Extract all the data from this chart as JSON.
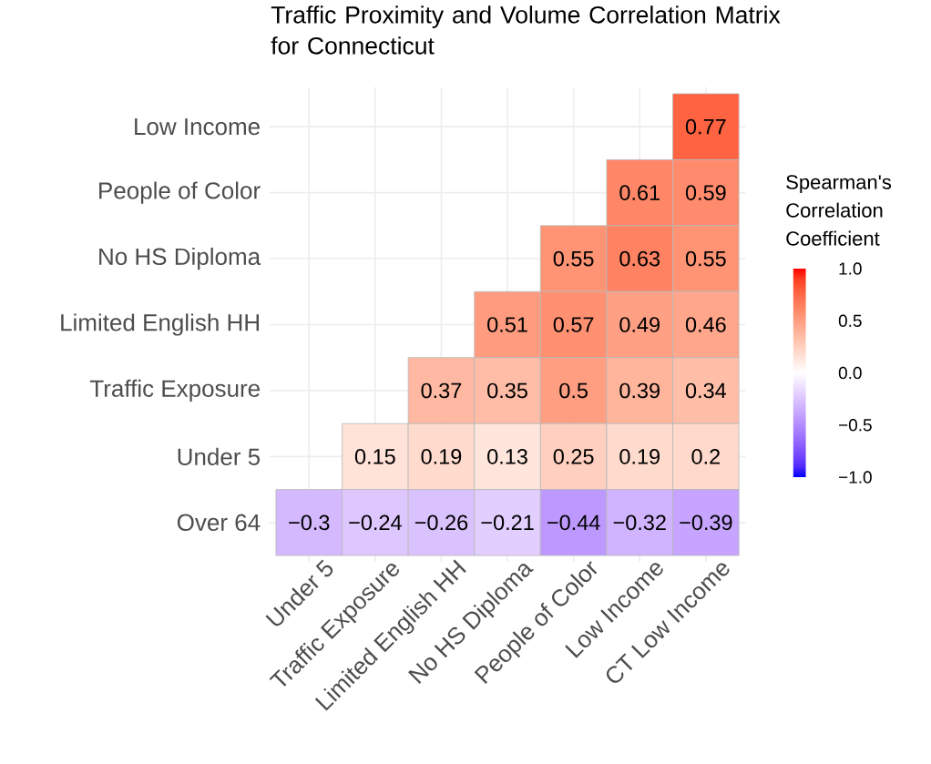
{
  "chart_data": {
    "type": "heatmap",
    "title": "Traffic Proximity and Volume Correlation Matrix for Connecticut",
    "categories": [
      "Under 5",
      "Traffic Exposure",
      "Limited English HH",
      "No HS Diploma",
      "People of Color",
      "Low Income",
      "CT Low Income"
    ],
    "y_categories": [
      "Low Income",
      "People of Color",
      "No HS Diploma",
      "Limited English HH",
      "Traffic Exposure",
      "Under 5",
      "Over 64"
    ],
    "cells": [
      [
        null,
        null,
        null,
        null,
        null,
        null,
        0.77
      ],
      [
        null,
        null,
        null,
        null,
        null,
        0.61,
        0.59
      ],
      [
        null,
        null,
        null,
        null,
        0.55,
        0.63,
        0.55
      ],
      [
        null,
        null,
        null,
        0.51,
        0.57,
        0.49,
        0.46
      ],
      [
        null,
        null,
        0.37,
        0.35,
        0.5,
        0.39,
        0.34
      ],
      [
        null,
        0.15,
        0.19,
        0.13,
        0.25,
        0.19,
        0.2
      ],
      [
        -0.3,
        -0.24,
        -0.26,
        -0.21,
        -0.44,
        -0.32,
        -0.39
      ]
    ],
    "cell_labels": [
      [
        null,
        null,
        null,
        null,
        null,
        null,
        "0.77"
      ],
      [
        null,
        null,
        null,
        null,
        null,
        "0.61",
        "0.59"
      ],
      [
        null,
        null,
        null,
        null,
        "0.55",
        "0.63",
        "0.55"
      ],
      [
        null,
        null,
        null,
        "0.51",
        "0.57",
        "0.49",
        "0.46"
      ],
      [
        null,
        null,
        "0.37",
        "0.35",
        "0.5",
        "0.39",
        "0.34"
      ],
      [
        null,
        "0.15",
        "0.19",
        "0.13",
        "0.25",
        "0.19",
        "0.2"
      ],
      [
        "−0.3",
        "−0.24",
        "−0.26",
        "−0.21",
        "−0.44",
        "−0.32",
        "−0.39"
      ]
    ],
    "clabel": "Spearman's Correlation Coefficient",
    "clim": [
      -1,
      1
    ],
    "cticks": [
      {
        "value": -1,
        "label": "−1.0"
      },
      {
        "value": -0.5,
        "label": "−0.5"
      },
      {
        "value": 0,
        "label": "0.0"
      },
      {
        "value": 0.5,
        "label": "0.5"
      },
      {
        "value": 1,
        "label": "1.0"
      }
    ],
    "grid": true
  }
}
